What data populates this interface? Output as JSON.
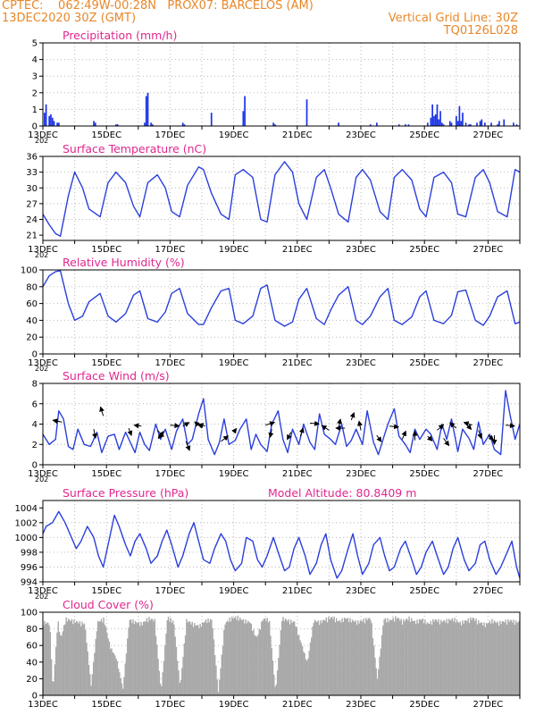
{
  "header": {
    "line1": "CPTEC:    062:49W-00:28N   PROX07: BARCELOS (AM)",
    "line2_left": "13DEC2020 30Z (GMT)",
    "line2_right": "Vertical Grid Line: 30Z",
    "line3_right": "TQ0126L028"
  },
  "x_tick_labels": [
    "13DEC",
    "15DEC",
    "17DEC",
    "19DEC",
    "21DEC",
    "23DEC",
    "25DEC",
    "27DEC"
  ],
  "corner_label": "202",
  "colors": {
    "line": "#2b3fdc",
    "bars": "#1a33e6",
    "cloud": "#a8a8a8",
    "title": "#e0278f",
    "header": "#e8872a",
    "arrow": "#000000"
  },
  "chart_data": [
    {
      "type": "bar",
      "title": "Precipitation (mm/h)",
      "ylim": [
        0,
        5
      ],
      "yticks": [
        0,
        1,
        2,
        3,
        4,
        5
      ],
      "x_unit": "days since 13DEC 00Z",
      "x_range": [
        0,
        15
      ],
      "grid": true,
      "x": [
        0.05,
        0.1,
        0.2,
        0.25,
        0.3,
        0.35,
        0.45,
        0.5,
        1.6,
        1.65,
        2.3,
        2.35,
        3.2,
        3.25,
        3.3,
        3.4,
        3.45,
        4.4,
        4.45,
        5.3,
        6.3,
        6.35,
        7.25,
        7.3,
        8.3,
        9.3,
        10.3,
        10.5,
        11.2,
        11.4,
        11.5,
        12.1,
        12.2,
        12.25,
        12.3,
        12.35,
        12.4,
        12.45,
        12.5,
        12.55,
        12.6,
        12.8,
        12.85,
        13.0,
        13.05,
        13.1,
        13.15,
        13.2,
        13.3,
        13.4,
        13.45,
        13.65,
        13.75,
        13.8,
        13.9,
        14.1,
        14.3,
        14.35,
        14.5,
        14.8,
        14.9
      ],
      "values": [
        0.8,
        1.3,
        0.6,
        0.7,
        0.5,
        0.3,
        0.2,
        0.2,
        0.3,
        0.2,
        0.1,
        0.1,
        0.2,
        1.8,
        2.0,
        0.2,
        0.1,
        0.2,
        0.1,
        0.8,
        0.9,
        1.8,
        0.2,
        0.1,
        1.6,
        0.2,
        0.1,
        0.2,
        0.1,
        0.1,
        0.1,
        0.2,
        0.5,
        1.3,
        0.6,
        0.7,
        1.3,
        0.4,
        0.9,
        0.2,
        0.1,
        0.3,
        0.2,
        0.6,
        0.3,
        1.2,
        0.3,
        0.8,
        0.2,
        0.1,
        0.1,
        0.2,
        0.3,
        0.4,
        0.2,
        0.2,
        0.1,
        0.3,
        0.4,
        0.2,
        0.1
      ]
    },
    {
      "type": "line",
      "title": "Surface Temperature (nC)",
      "ylim": [
        20,
        36
      ],
      "yticks": [
        21,
        24,
        27,
        30,
        33,
        36
      ],
      "x_unit": "days since 13DEC 00Z",
      "x_range": [
        0,
        15
      ],
      "grid": true,
      "x": [
        0,
        0.2,
        0.4,
        0.55,
        0.8,
        1.0,
        1.25,
        1.45,
        1.8,
        2.05,
        2.3,
        2.6,
        2.85,
        3.05,
        3.3,
        3.6,
        3.85,
        4.05,
        4.3,
        4.55,
        4.9,
        5.05,
        5.3,
        5.6,
        5.85,
        6.05,
        6.3,
        6.6,
        6.85,
        7.05,
        7.3,
        7.6,
        7.85,
        8.05,
        8.3,
        8.6,
        8.85,
        9.05,
        9.3,
        9.6,
        9.85,
        10.05,
        10.3,
        10.6,
        10.85,
        11.05,
        11.3,
        11.6,
        11.85,
        12.05,
        12.3,
        12.6,
        12.85,
        13.05,
        13.3,
        13.6,
        13.85,
        14.05,
        14.3,
        14.6,
        14.85,
        15.0
      ],
      "values": [
        25.0,
        23.0,
        21.3,
        20.8,
        28.5,
        33.0,
        30.0,
        26.0,
        24.5,
        31.0,
        33.0,
        31.0,
        26.5,
        24.5,
        31.0,
        32.5,
        30.0,
        25.5,
        24.5,
        30.5,
        34.0,
        33.5,
        29.0,
        25.0,
        24.0,
        32.5,
        33.5,
        32.0,
        24.0,
        23.5,
        32.5,
        35.0,
        33.0,
        27.0,
        24.0,
        32.0,
        33.5,
        30.0,
        25.0,
        23.5,
        32.0,
        33.5,
        31.5,
        25.5,
        24.0,
        32.0,
        33.5,
        31.5,
        26.0,
        24.5,
        32.0,
        33.0,
        31.0,
        25.0,
        24.5,
        32.0,
        33.5,
        31.0,
        25.5,
        24.5,
        33.5,
        33.0
      ]
    },
    {
      "type": "line",
      "title": "Relative Humidity (%)",
      "ylim": [
        0,
        100
      ],
      "yticks": [
        0,
        20,
        40,
        60,
        80,
        100
      ],
      "x_unit": "days since 13DEC 00Z",
      "x_range": [
        0,
        15
      ],
      "grid": true,
      "x": [
        0,
        0.2,
        0.4,
        0.55,
        0.8,
        1.0,
        1.25,
        1.45,
        1.8,
        2.05,
        2.3,
        2.6,
        2.85,
        3.05,
        3.3,
        3.6,
        3.85,
        4.05,
        4.3,
        4.55,
        4.9,
        5.05,
        5.3,
        5.6,
        5.85,
        6.05,
        6.3,
        6.6,
        6.85,
        7.05,
        7.3,
        7.6,
        7.85,
        8.05,
        8.3,
        8.6,
        8.85,
        9.05,
        9.3,
        9.6,
        9.85,
        10.05,
        10.3,
        10.6,
        10.85,
        11.05,
        11.3,
        11.6,
        11.85,
        12.05,
        12.3,
        12.6,
        12.85,
        13.05,
        13.3,
        13.6,
        13.85,
        14.05,
        14.3,
        14.6,
        14.85,
        15.0
      ],
      "values": [
        80,
        93,
        98,
        99,
        60,
        40,
        45,
        62,
        72,
        45,
        38,
        48,
        70,
        75,
        42,
        38,
        50,
        72,
        78,
        48,
        35,
        35,
        55,
        75,
        78,
        40,
        36,
        45,
        78,
        82,
        40,
        33,
        38,
        65,
        78,
        42,
        35,
        52,
        70,
        80,
        40,
        35,
        45,
        68,
        78,
        40,
        35,
        44,
        68,
        75,
        40,
        36,
        46,
        74,
        76,
        40,
        34,
        45,
        68,
        75,
        36,
        38
      ]
    },
    {
      "type": "line",
      "title": "Surface Wind (m/s)",
      "ylim": [
        0,
        8
      ],
      "yticks": [
        0,
        2,
        4,
        6,
        8
      ],
      "x_unit": "days since 13DEC 00Z",
      "x_range": [
        0,
        15
      ],
      "grid": true,
      "x": [
        0,
        0.2,
        0.4,
        0.5,
        0.65,
        0.8,
        0.95,
        1.1,
        1.3,
        1.5,
        1.7,
        1.85,
        2.05,
        2.25,
        2.4,
        2.6,
        2.75,
        2.9,
        3.05,
        3.2,
        3.35,
        3.55,
        3.7,
        3.85,
        4.05,
        4.2,
        4.4,
        4.55,
        4.7,
        4.9,
        5.05,
        5.2,
        5.4,
        5.55,
        5.7,
        5.85,
        6.05,
        6.2,
        6.4,
        6.55,
        6.7,
        6.85,
        7.05,
        7.2,
        7.4,
        7.55,
        7.7,
        7.85,
        8.05,
        8.2,
        8.4,
        8.55,
        8.7,
        8.85,
        9.05,
        9.2,
        9.4,
        9.55,
        9.7,
        9.85,
        10.05,
        10.2,
        10.4,
        10.55,
        10.7,
        10.85,
        11.05,
        11.2,
        11.4,
        11.55,
        11.7,
        11.85,
        12.05,
        12.2,
        12.4,
        12.55,
        12.7,
        12.85,
        13.05,
        13.2,
        13.4,
        13.55,
        13.7,
        13.85,
        14.05,
        14.2,
        14.4,
        14.55,
        14.7,
        14.85,
        15.0
      ],
      "values": [
        3.0,
        2.0,
        2.5,
        5.3,
        4.5,
        1.8,
        1.5,
        3.5,
        2.0,
        1.8,
        3.2,
        1.2,
        2.8,
        3.0,
        1.5,
        3.2,
        2.2,
        1.2,
        3.2,
        2.0,
        1.4,
        4.0,
        2.5,
        3.5,
        1.5,
        3.3,
        4.5,
        2.0,
        2.5,
        5.0,
        6.5,
        2.5,
        1.0,
        2.2,
        4.5,
        2.0,
        2.4,
        3.5,
        4.5,
        1.5,
        3.0,
        2.0,
        1.3,
        4.0,
        5.3,
        2.5,
        1.2,
        3.5,
        2.0,
        4.0,
        2.2,
        1.5,
        5.0,
        3.0,
        2.5,
        2.0,
        4.0,
        1.8,
        2.4,
        3.5,
        2.0,
        5.3,
        2.2,
        1.0,
        2.5,
        4.0,
        5.5,
        2.8,
        2.0,
        1.2,
        3.5,
        2.5,
        3.5,
        3.0,
        1.5,
        4.0,
        2.5,
        4.5,
        1.3,
        3.5,
        2.6,
        1.5,
        4.2,
        2.0,
        3.0,
        1.5,
        1.0,
        7.3,
        4.8,
        2.5,
        4.0
      ]
    },
    {
      "type": "line",
      "title": "Surface Pressure (hPa)",
      "annotation": "Model Altitude: 80.8409  m",
      "ylim": [
        994,
        1005
      ],
      "yticks": [
        994,
        996,
        998,
        1000,
        1002,
        1004
      ],
      "x_unit": "days since 13DEC 00Z",
      "x_range": [
        0,
        15
      ],
      "grid": true,
      "x": [
        0,
        0.1,
        0.3,
        0.5,
        0.7,
        0.9,
        1.05,
        1.2,
        1.4,
        1.6,
        1.75,
        1.9,
        2.05,
        2.25,
        2.4,
        2.6,
        2.75,
        2.9,
        3.05,
        3.25,
        3.4,
        3.6,
        3.75,
        3.9,
        4.05,
        4.25,
        4.4,
        4.6,
        4.75,
        4.9,
        5.05,
        5.25,
        5.4,
        5.6,
        5.75,
        5.9,
        6.05,
        6.25,
        6.4,
        6.6,
        6.75,
        6.9,
        7.05,
        7.25,
        7.4,
        7.6,
        7.75,
        7.9,
        8.05,
        8.25,
        8.4,
        8.6,
        8.75,
        8.9,
        9.05,
        9.25,
        9.4,
        9.6,
        9.75,
        9.9,
        10.05,
        10.25,
        10.4,
        10.6,
        10.75,
        10.9,
        11.05,
        11.25,
        11.4,
        11.6,
        11.75,
        11.9,
        12.05,
        12.25,
        12.4,
        12.6,
        12.75,
        12.9,
        13.05,
        13.25,
        13.4,
        13.6,
        13.75,
        13.9,
        14.05,
        14.25,
        14.4,
        14.6,
        14.75,
        14.9,
        15.0
      ],
      "values": [
        1000.5,
        1001.5,
        1002.0,
        1003.5,
        1002.0,
        1000.0,
        998.5,
        999.5,
        1001.5,
        1000.0,
        997.5,
        996.0,
        999.0,
        1003.0,
        1001.5,
        999.0,
        997.5,
        999.5,
        1000.5,
        998.5,
        996.5,
        997.5,
        999.5,
        1001.0,
        999.0,
        996.0,
        997.5,
        1000.5,
        1002.0,
        999.5,
        997.0,
        996.5,
        998.5,
        1000.5,
        999.5,
        997.0,
        995.5,
        996.5,
        1000.0,
        999.5,
        997.0,
        996.0,
        997.5,
        1000.0,
        998.0,
        995.5,
        996.0,
        998.5,
        1000.0,
        997.5,
        995.0,
        996.5,
        999.0,
        1000.5,
        997.0,
        994.5,
        995.5,
        998.5,
        1000.5,
        997.5,
        995.0,
        996.5,
        999.0,
        1000.0,
        997.5,
        995.5,
        996.0,
        998.5,
        999.5,
        997.0,
        995.0,
        996.0,
        998.0,
        999.5,
        997.5,
        995.0,
        996.0,
        998.5,
        1000.0,
        997.0,
        995.5,
        996.5,
        999.0,
        999.5,
        997.0,
        995.0,
        996.0,
        998.0,
        999.5,
        996.0,
        994.5
      ]
    },
    {
      "type": "area",
      "title": "Cloud Cover (%)",
      "ylim": [
        0,
        100
      ],
      "yticks": [
        0,
        20,
        40,
        60,
        80,
        100
      ],
      "x_unit": "days since 13DEC 00Z",
      "x_range": [
        0,
        15
      ],
      "grid": true,
      "x": [
        0,
        0.2,
        0.3,
        0.45,
        0.55,
        0.7,
        0.9,
        1.1,
        1.3,
        1.5,
        1.7,
        1.9,
        2.1,
        2.3,
        2.5,
        2.7,
        2.9,
        3.1,
        3.3,
        3.5,
        3.7,
        3.9,
        4.1,
        4.3,
        4.5,
        4.7,
        4.9,
        5.1,
        5.3,
        5.5,
        5.7,
        5.9,
        6.1,
        6.3,
        6.5,
        6.7,
        6.9,
        7.1,
        7.3,
        7.5,
        7.7,
        7.9,
        8.1,
        8.3,
        8.5,
        8.7,
        8.9,
        9.1,
        9.3,
        9.5,
        9.7,
        9.9,
        10.1,
        10.3,
        10.5,
        10.7,
        10.9,
        11.1,
        11.3,
        11.5,
        11.7,
        11.9,
        12.1,
        12.3,
        12.5,
        12.7,
        12.9,
        13.1,
        13.3,
        13.5,
        13.7,
        13.9,
        14.1,
        14.3,
        14.5,
        14.7,
        14.9,
        15.0
      ],
      "values": [
        90,
        88,
        5,
        92,
        70,
        94,
        92,
        90,
        88,
        12,
        90,
        94,
        60,
        45,
        8,
        93,
        90,
        88,
        95,
        92,
        5,
        96,
        90,
        10,
        92,
        88,
        85,
        92,
        93,
        4,
        88,
        95,
        96,
        92,
        90,
        70,
        94,
        93,
        4,
        95,
        92,
        90,
        65,
        40,
        92,
        90,
        94,
        96,
        91,
        95,
        92,
        90,
        93,
        95,
        20,
        94,
        92,
        96,
        91,
        95,
        90,
        94,
        88,
        93,
        91,
        92,
        94,
        89,
        92,
        95,
        90,
        87,
        92,
        89,
        91,
        92,
        90,
        91
      ]
    }
  ]
}
